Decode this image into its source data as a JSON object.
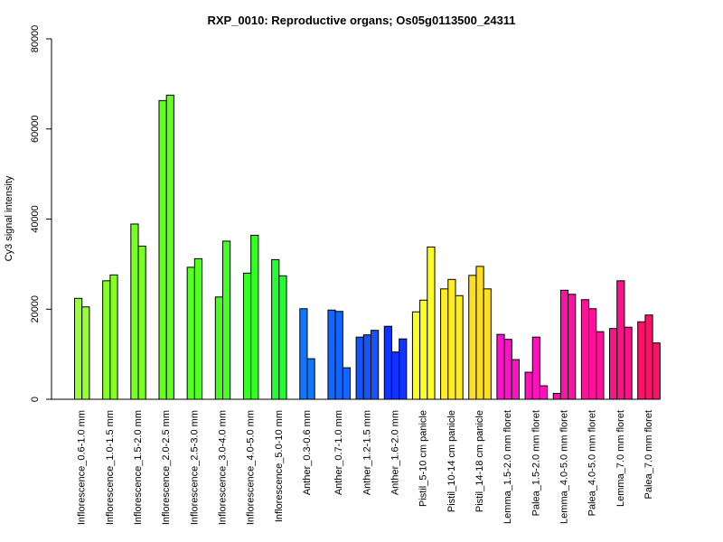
{
  "chart_data": {
    "type": "bar",
    "title": "RXP_0010: Reproductive organs; Os05g0113500_24311",
    "xlabel": "",
    "ylabel": "Cy3 signal intensity",
    "ylim": [
      0,
      80000
    ],
    "yticks": [
      0,
      20000,
      40000,
      60000,
      80000
    ],
    "grid": false,
    "legend": "none",
    "groups": [
      {
        "label": "Inflorescence_0.6-1.0 mm",
        "color": "#99ff33",
        "values": [
          22400,
          20500
        ]
      },
      {
        "label": "Inflorescence_1.0-1.5 mm",
        "color": "#88ff22",
        "values": [
          26300,
          27600
        ]
      },
      {
        "label": "Inflorescence_1.5-2.0 mm",
        "color": "#77ff22",
        "values": [
          38900,
          34000
        ]
      },
      {
        "label": "Inflorescence_2.0-2.5 mm",
        "color": "#66ff22",
        "values": [
          66300,
          67500
        ]
      },
      {
        "label": "Inflorescence_2.5-3.0 mm",
        "color": "#55ff22",
        "values": [
          29300,
          31200
        ]
      },
      {
        "label": "Inflorescence_3.0-4.0 mm",
        "color": "#44ff22",
        "values": [
          22700,
          35100
        ]
      },
      {
        "label": "Inflorescence_4.0-5.0 mm",
        "color": "#33ff22",
        "values": [
          28000,
          36400
        ]
      },
      {
        "label": "Inflorescence_5.0-10 mm",
        "color": "#22ff33",
        "values": [
          31000,
          27400
        ]
      },
      {
        "label": "Anther_0.3-0.6 mm",
        "color": "#1177ff",
        "values": [
          20100,
          9000
        ]
      },
      {
        "label": "Anther_0.7-1.0 mm",
        "color": "#1166ff",
        "values": [
          19800,
          19500,
          7000
        ]
      },
      {
        "label": "Anther_1.2-1.5 mm",
        "color": "#1155ff",
        "values": [
          13800,
          14300,
          15300
        ]
      },
      {
        "label": "Anther_1.6-2.0 mm",
        "color": "#1133ff",
        "values": [
          16200,
          10500,
          13400
        ]
      },
      {
        "label": "Pistil_5-10 cm panicle",
        "color": "#ffff22",
        "values": [
          19400,
          22000,
          33800
        ]
      },
      {
        "label": "Pistil_10-14 cm panicle",
        "color": "#ffee22",
        "values": [
          24500,
          26600,
          23000
        ]
      },
      {
        "label": "Pistil_14-18 cm panicle",
        "color": "#ffdd22",
        "values": [
          27500,
          29500,
          24500
        ]
      },
      {
        "label": "Lemma_1.5-2.0 mm floret",
        "color": "#ff11cc",
        "values": [
          14400,
          13300,
          8800
        ]
      },
      {
        "label": "Palea_1.5-2.0 mm floret",
        "color": "#ff11bb",
        "values": [
          6000,
          13800,
          3000
        ]
      },
      {
        "label": "Lemma_4.0-5.0 mm floret",
        "color": "#ff11aa",
        "values": [
          1300,
          24200,
          23300
        ]
      },
      {
        "label": "Palea_4.0-5.0 mm floret",
        "color": "#ff1199",
        "values": [
          22100,
          20100,
          15000
        ]
      },
      {
        "label": "Lemma_7.0 mm floret",
        "color": "#ff1188",
        "values": [
          15700,
          26300,
          16000
        ]
      },
      {
        "label": "Palea_7.0 mm floret",
        "color": "#ff1166",
        "values": [
          17200,
          18700,
          12500
        ]
      }
    ]
  }
}
